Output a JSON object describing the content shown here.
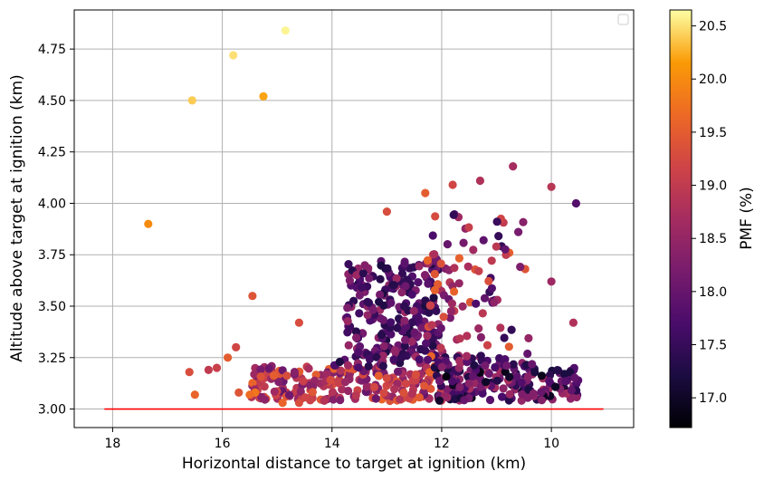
{
  "chart_data": {
    "type": "scatter",
    "title": "",
    "xlabel": "Horizontal distance to target at ignition (km)",
    "ylabel": "Altitude above target at ignition (km)",
    "x_inverted": true,
    "xlim": [
      18.7,
      8.5
    ],
    "ylim": [
      2.91,
      4.94
    ],
    "x_ticks": [
      18,
      16,
      14,
      12,
      10
    ],
    "y_ticks": [
      3.0,
      3.25,
      3.5,
      3.75,
      4.0,
      4.25,
      4.5,
      4.75
    ],
    "y_tick_labels": [
      "3.00",
      "3.25",
      "3.50",
      "3.75",
      "4.00",
      "4.25",
      "4.50",
      "4.75"
    ],
    "grid": true,
    "legend": {
      "placement": "top-right",
      "entries": []
    },
    "colorbar": {
      "label": "PMF (%)",
      "colormap": "inferno",
      "range": [
        16.72,
        20.65
      ],
      "ticks": [
        17.0,
        17.5,
        18.0,
        18.5,
        19.0,
        19.5,
        20.0,
        20.5
      ],
      "tick_labels": [
        "17.0",
        "17.5",
        "18.0",
        "18.5",
        "19.0",
        "19.5",
        "20.0",
        "20.5"
      ]
    },
    "reference_line": {
      "y": 3.0,
      "x_from": 18.15,
      "x_to": 9.05,
      "color": "#ff0000"
    },
    "outlier_points": [
      {
        "x": 14.85,
        "y": 4.84,
        "c": 20.6
      },
      {
        "x": 15.8,
        "y": 4.72,
        "c": 20.5
      },
      {
        "x": 16.55,
        "y": 4.5,
        "c": 20.4
      },
      {
        "x": 15.25,
        "y": 4.52,
        "c": 20.2
      },
      {
        "x": 17.35,
        "y": 3.9,
        "c": 20.0
      },
      {
        "x": 15.45,
        "y": 3.55,
        "c": 19.4
      },
      {
        "x": 14.6,
        "y": 3.42,
        "c": 19.3
      },
      {
        "x": 15.75,
        "y": 3.3,
        "c": 19.2
      },
      {
        "x": 15.9,
        "y": 3.25,
        "c": 19.5
      },
      {
        "x": 16.25,
        "y": 3.19,
        "c": 19.0
      },
      {
        "x": 16.6,
        "y": 3.18,
        "c": 19.3
      },
      {
        "x": 16.5,
        "y": 3.07,
        "c": 19.6
      },
      {
        "x": 15.4,
        "y": 3.08,
        "c": 19.8
      },
      {
        "x": 15.5,
        "y": 3.07,
        "c": 19.7
      },
      {
        "x": 15.7,
        "y": 3.08,
        "c": 19.4
      },
      {
        "x": 14.9,
        "y": 3.03,
        "c": 19.6
      },
      {
        "x": 14.6,
        "y": 3.03,
        "c": 19.3
      },
      {
        "x": 16.1,
        "y": 3.2,
        "c": 19.1
      },
      {
        "x": 9.6,
        "y": 3.42,
        "c": 18.8
      },
      {
        "x": 9.55,
        "y": 4.0,
        "c": 17.8
      },
      {
        "x": 10.0,
        "y": 4.08,
        "c": 18.9
      },
      {
        "x": 10.7,
        "y": 4.18,
        "c": 18.7
      },
      {
        "x": 11.3,
        "y": 4.11,
        "c": 18.8
      },
      {
        "x": 11.8,
        "y": 4.09,
        "c": 19.2
      },
      {
        "x": 12.3,
        "y": 4.05,
        "c": 19.5
      },
      {
        "x": 10.0,
        "y": 3.62,
        "c": 18.6
      },
      {
        "x": 13.0,
        "y": 3.96,
        "c": 19.3
      }
    ],
    "clusters": [
      {
        "x_range": [
          13.75,
          12.05
        ],
        "y_range": [
          3.25,
          3.72
        ],
        "c_range": [
          17.2,
          18.6
        ],
        "count": 230,
        "seed": 7
      },
      {
        "x_range": [
          12.3,
          10.4
        ],
        "y_range": [
          3.25,
          3.95
        ],
        "c_range": [
          17.4,
          19.6
        ],
        "count": 90,
        "seed": 11
      },
      {
        "x_range": [
          15.5,
          12.0
        ],
        "y_range": [
          3.04,
          3.21
        ],
        "c_range": [
          18.0,
          19.6
        ],
        "count": 240,
        "seed": 23
      },
      {
        "x_range": [
          12.1,
          9.5
        ],
        "y_range": [
          3.04,
          3.2
        ],
        "c_range": [
          16.8,
          18.8
        ],
        "count": 180,
        "seed": 31
      },
      {
        "x_range": [
          14.0,
          10.3
        ],
        "y_range": [
          3.2,
          3.26
        ],
        "c_range": [
          17.2,
          18.7
        ],
        "count": 60,
        "seed": 41
      }
    ]
  }
}
